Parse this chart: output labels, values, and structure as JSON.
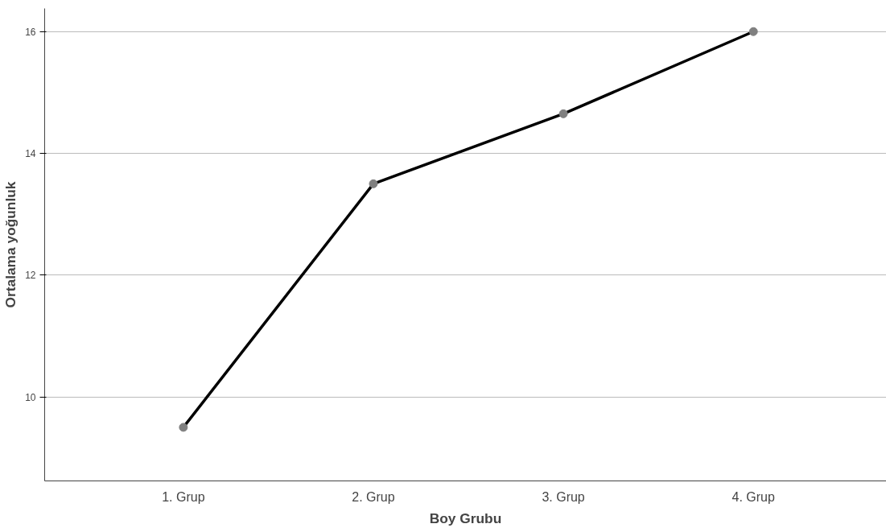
{
  "chart_data": {
    "type": "line",
    "xlabel": "Boy Grubu",
    "ylabel": "Ortalama yoğunluk",
    "categories": [
      "1. Grup",
      "2. Grup",
      "3. Grup",
      "4. Grup"
    ],
    "series": [
      {
        "color": "#000000",
        "values": [
          9.5,
          13.5,
          14.65,
          16.0
        ]
      }
    ],
    "ylim": [
      8.62,
      16.38
    ],
    "yticks": [
      10,
      12,
      14,
      16
    ],
    "grid": "y",
    "marker": "circle"
  }
}
